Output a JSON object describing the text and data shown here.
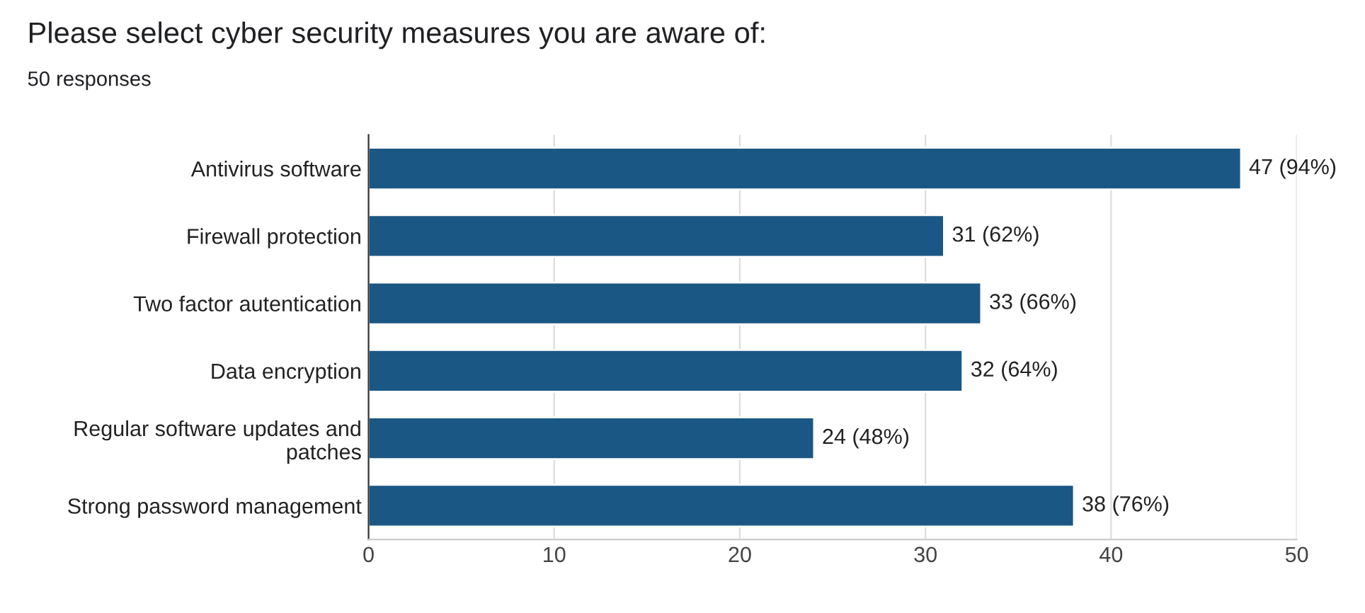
{
  "chart_data": {
    "type": "bar",
    "orientation": "horizontal",
    "title": "Please select cyber security measures you are aware of:",
    "subtitle": "50 responses",
    "categories": [
      "Antivirus software",
      "Firewall protection",
      "Two factor autentication",
      "Data encryption",
      "Regular software updates and patches",
      "Strong password management"
    ],
    "values": [
      47,
      31,
      33,
      32,
      24,
      38
    ],
    "value_labels": [
      "47 (94%)",
      "31 (62%)",
      "33 (66%)",
      "32 (64%)",
      "24 (48%)",
      "38 (76%)"
    ],
    "color": "#1a5785",
    "xlim": [
      0,
      50
    ],
    "xticks": [
      0,
      10,
      20,
      30,
      40,
      50
    ],
    "grid": "x",
    "legend": false
  }
}
